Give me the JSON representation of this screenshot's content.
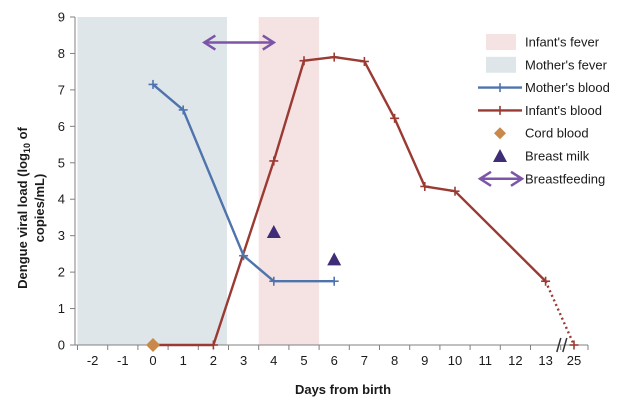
{
  "chart_data": {
    "type": "line",
    "xlabel": "Days from birth",
    "ylabel": "Dengue viral load (log10 of copies/mL)",
    "ylim": [
      0,
      9
    ],
    "yticks": [
      "0",
      "1",
      "2",
      "3",
      "4",
      "5",
      "6",
      "7",
      "8",
      "9"
    ],
    "xticks": [
      "-2",
      "-1",
      "0",
      "1",
      "2",
      "3",
      "4",
      "5",
      "6",
      "7",
      "8",
      "9",
      "10",
      "11",
      "12",
      "13",
      "25"
    ],
    "axis_break_between": [
      "13",
      "25"
    ],
    "grid": false,
    "legend_position": "right",
    "legend": [
      {
        "key": "infant_fever",
        "label": "Infant's fever"
      },
      {
        "key": "mother_fever",
        "label": "Mother's fever"
      },
      {
        "key": "mother_blood",
        "label": "Mother's blood"
      },
      {
        "key": "infant_blood",
        "label": "Infant's blood"
      },
      {
        "key": "cord_blood",
        "label": "Cord blood"
      },
      {
        "key": "breast_milk",
        "label": "Breast milk"
      },
      {
        "key": "breastfeeding",
        "label": "Breastfeeding"
      }
    ],
    "shaded_periods": [
      {
        "key": "mother_fever",
        "x_from": -2.5,
        "x_to": 2.45
      },
      {
        "key": "infant_fever",
        "x_from": 3.5,
        "x_to": 5.5
      }
    ],
    "series": [
      {
        "key": "mother_blood",
        "points": [
          [
            0,
            7.15
          ],
          [
            1,
            6.45
          ],
          [
            3,
            2.45
          ],
          [
            4,
            1.75
          ],
          [
            6,
            1.75
          ]
        ]
      },
      {
        "key": "infant_blood",
        "points": [
          [
            0,
            0
          ],
          [
            2,
            0
          ],
          [
            4,
            5.05
          ],
          [
            5,
            7.8
          ],
          [
            6,
            7.9
          ],
          [
            7,
            7.78
          ],
          [
            8,
            6.22
          ],
          [
            9,
            4.35
          ],
          [
            10,
            4.22
          ],
          [
            13,
            1.75
          ]
        ],
        "dotted_tail": {
          "to": [
            25,
            0
          ]
        }
      },
      {
        "key": "cord_blood",
        "points": [
          [
            0,
            0
          ]
        ]
      },
      {
        "key": "breast_milk",
        "points": [
          [
            4,
            3.1
          ],
          [
            6,
            2.35
          ]
        ]
      }
    ],
    "breastfeeding_arrow": {
      "x_from": 1.7,
      "x_to": 4.0,
      "y": 8.3
    },
    "colors": {
      "mother_blood": "#4f73ad",
      "infant_blood": "#9a3a33",
      "cord_blood": "#c8894a",
      "breast_milk": "#3f2d78",
      "breastfeeding": "#7d55a8",
      "mother_fever": "#dfe6ea",
      "infant_fever": "#f5e3e3"
    }
  }
}
